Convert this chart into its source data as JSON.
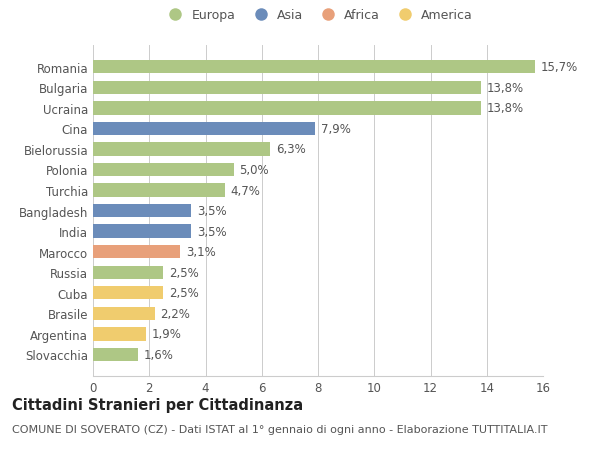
{
  "countries": [
    "Romania",
    "Bulgaria",
    "Ucraina",
    "Cina",
    "Bielorussia",
    "Polonia",
    "Turchia",
    "Bangladesh",
    "India",
    "Marocco",
    "Russia",
    "Cuba",
    "Brasile",
    "Argentina",
    "Slovacchia"
  ],
  "values": [
    15.7,
    13.8,
    13.8,
    7.9,
    6.3,
    5.0,
    4.7,
    3.5,
    3.5,
    3.1,
    2.5,
    2.5,
    2.2,
    1.9,
    1.6
  ],
  "labels": [
    "15,7%",
    "13,8%",
    "13,8%",
    "7,9%",
    "6,3%",
    "5,0%",
    "4,7%",
    "3,5%",
    "3,5%",
    "3,1%",
    "2,5%",
    "2,5%",
    "2,2%",
    "1,9%",
    "1,6%"
  ],
  "continents": [
    "Europa",
    "Europa",
    "Europa",
    "Asia",
    "Europa",
    "Europa",
    "Europa",
    "Asia",
    "Asia",
    "Africa",
    "Europa",
    "America",
    "America",
    "America",
    "Europa"
  ],
  "continent_colors": {
    "Europa": "#aec785",
    "Asia": "#6b8cba",
    "Africa": "#e8a07a",
    "America": "#f0cc6e"
  },
  "legend_order": [
    "Europa",
    "Asia",
    "Africa",
    "America"
  ],
  "title": "Cittadini Stranieri per Cittadinanza",
  "subtitle": "COMUNE DI SOVERATO (CZ) - Dati ISTAT al 1° gennaio di ogni anno - Elaborazione TUTTITALIA.IT",
  "xlim": [
    0,
    16
  ],
  "xticks": [
    0,
    2,
    4,
    6,
    8,
    10,
    12,
    14,
    16
  ],
  "bg_color": "#ffffff",
  "grid_color": "#cccccc",
  "bar_height": 0.65,
  "title_fontsize": 10.5,
  "subtitle_fontsize": 8,
  "tick_fontsize": 8.5,
  "label_fontsize": 8.5
}
